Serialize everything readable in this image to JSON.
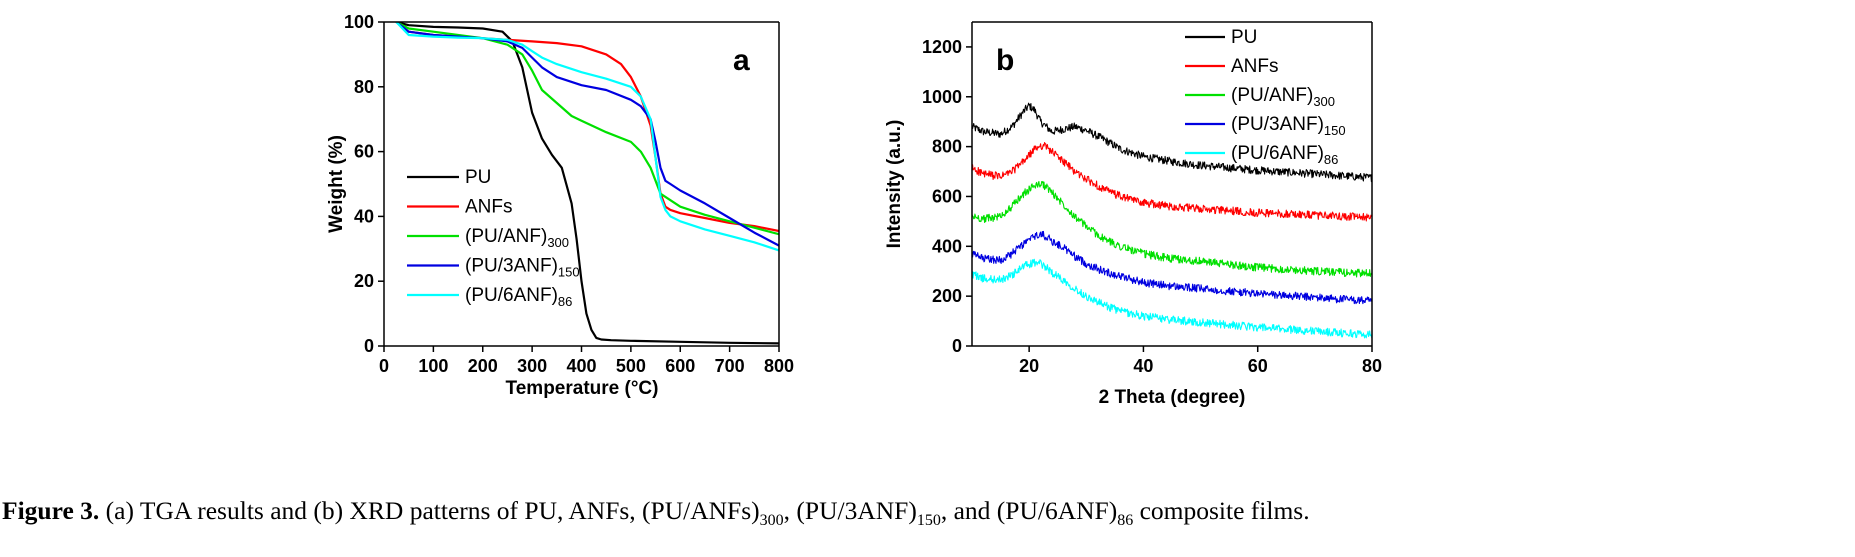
{
  "chart_data": [
    {
      "panel": "a",
      "type": "line",
      "xlabel": "Temperature (°C)",
      "ylabel": "Weight (%)",
      "xlim": [
        0,
        800
      ],
      "ylim": [
        0,
        100
      ],
      "xticks": [
        0,
        100,
        200,
        300,
        400,
        500,
        600,
        700,
        800
      ],
      "yticks": [
        0,
        20,
        40,
        60,
        80,
        100
      ],
      "grid": false,
      "legend_position": "lower-left",
      "series": [
        {
          "name": "PU",
          "name_sub": "",
          "color": "#000000",
          "x": [
            25,
            50,
            100,
            150,
            200,
            240,
            260,
            280,
            300,
            320,
            340,
            360,
            380,
            390,
            400,
            410,
            420,
            430,
            440,
            460,
            500,
            600,
            700,
            800
          ],
          "y": [
            100,
            99,
            98.5,
            98.3,
            98,
            97,
            94,
            86,
            72,
            64,
            59,
            55,
            44,
            33,
            20,
            10,
            5,
            2.5,
            2,
            1.8,
            1.6,
            1.3,
            1.0,
            0.8
          ]
        },
        {
          "name": "ANFs",
          "name_sub": "",
          "color": "#ff0000",
          "x": [
            25,
            50,
            100,
            150,
            200,
            250,
            300,
            350,
            400,
            450,
            480,
            500,
            520,
            540,
            550,
            560,
            570,
            580,
            600,
            650,
            700,
            750,
            800
          ],
          "y": [
            100,
            97,
            96,
            95.5,
            95,
            94.5,
            94,
            93.5,
            92.5,
            90,
            87,
            83,
            77,
            68,
            58,
            47,
            43,
            42,
            41,
            39.5,
            38,
            37,
            35.5
          ]
        },
        {
          "name": "(PU/ANF)",
          "name_sub": "300",
          "color": "#00e000",
          "x": [
            25,
            50,
            100,
            150,
            200,
            250,
            280,
            300,
            320,
            350,
            380,
            400,
            450,
            500,
            520,
            540,
            560,
            580,
            600,
            650,
            700,
            750,
            800
          ],
          "y": [
            100,
            98,
            97,
            96,
            95,
            93,
            90,
            85,
            79,
            75,
            71,
            69.5,
            66,
            63,
            60,
            55,
            47,
            45,
            43,
            40.5,
            38.5,
            36.5,
            34.5
          ]
        },
        {
          "name": "(PU/3ANF)",
          "name_sub": "150",
          "color": "#0000e0",
          "x": [
            25,
            50,
            100,
            150,
            200,
            250,
            280,
            300,
            320,
            350,
            400,
            450,
            500,
            520,
            540,
            550,
            560,
            570,
            580,
            600,
            650,
            700,
            750,
            800
          ],
          "y": [
            100,
            97,
            96,
            95.5,
            95,
            94,
            92,
            89,
            86,
            83,
            80.5,
            79,
            76,
            74,
            70,
            63,
            55,
            51,
            50,
            48,
            44,
            39.5,
            35,
            31
          ]
        },
        {
          "name": "(PU/6ANF)",
          "name_sub": "86",
          "color": "#00ffff",
          "x": [
            25,
            50,
            100,
            150,
            200,
            250,
            280,
            300,
            320,
            350,
            400,
            450,
            500,
            520,
            540,
            550,
            560,
            570,
            580,
            600,
            650,
            700,
            750,
            800
          ],
          "y": [
            100,
            96,
            95.5,
            95.2,
            95,
            94.5,
            93,
            91,
            89,
            87,
            84.5,
            82.5,
            80,
            77,
            70,
            58,
            46,
            42,
            40,
            38.5,
            36,
            34,
            32,
            29.5
          ]
        }
      ]
    },
    {
      "panel": "b",
      "type": "line",
      "xlabel": "2 Theta (degree)",
      "ylabel": "Intensity (a.u.)",
      "xlim": [
        10,
        80
      ],
      "ylim": [
        0,
        1300
      ],
      "xticks": [
        20,
        40,
        60,
        80
      ],
      "yticks": [
        0,
        200,
        400,
        600,
        800,
        1000,
        1200
      ],
      "grid": false,
      "legend_position": "top-right",
      "noise_amplitude": 16,
      "series": [
        {
          "name": "PU",
          "name_sub": "",
          "color": "#000000",
          "x": [
            10,
            12,
            15,
            17,
            19,
            20,
            21,
            22,
            24,
            26,
            28,
            30,
            33,
            36,
            40,
            45,
            50,
            60,
            70,
            80
          ],
          "y": [
            880,
            860,
            850,
            880,
            940,
            965,
            945,
            900,
            860,
            870,
            880,
            865,
            830,
            790,
            760,
            740,
            725,
            705,
            690,
            675
          ]
        },
        {
          "name": "ANFs",
          "name_sub": "",
          "color": "#ff0000",
          "x": [
            10,
            12,
            15,
            17,
            19,
            21,
            22,
            23,
            24,
            26,
            28,
            30,
            33,
            36,
            40,
            45,
            50,
            60,
            70,
            80
          ],
          "y": [
            715,
            690,
            680,
            700,
            740,
            790,
            805,
            800,
            780,
            740,
            700,
            670,
            630,
            600,
            575,
            560,
            550,
            535,
            525,
            515
          ]
        },
        {
          "name": "(PU/ANF)",
          "name_sub": "300",
          "color": "#00e000",
          "x": [
            10,
            12,
            15,
            17,
            19,
            21,
            22,
            23,
            24,
            26,
            28,
            30,
            33,
            36,
            40,
            45,
            50,
            60,
            70,
            80
          ],
          "y": [
            520,
            510,
            520,
            560,
            610,
            645,
            650,
            640,
            615,
            570,
            520,
            480,
            430,
            400,
            370,
            350,
            340,
            315,
            300,
            290
          ]
        },
        {
          "name": "(PU/3ANF)",
          "name_sub": "150",
          "color": "#0000e0",
          "x": [
            10,
            12,
            15,
            17,
            19,
            21,
            22,
            23,
            24,
            26,
            28,
            30,
            33,
            36,
            40,
            45,
            50,
            60,
            70,
            80
          ],
          "y": [
            370,
            350,
            345,
            370,
            410,
            440,
            448,
            440,
            420,
            395,
            360,
            330,
            300,
            280,
            255,
            240,
            230,
            210,
            195,
            180
          ]
        },
        {
          "name": "(PU/6ANF)",
          "name_sub": "86",
          "color": "#00ffff",
          "x": [
            10,
            12,
            15,
            17,
            19,
            21,
            22,
            23,
            24,
            26,
            28,
            30,
            33,
            36,
            40,
            45,
            50,
            60,
            70,
            80
          ],
          "y": [
            290,
            270,
            265,
            285,
            320,
            335,
            330,
            315,
            295,
            265,
            230,
            200,
            165,
            140,
            120,
            105,
            95,
            75,
            60,
            45
          ]
        }
      ]
    }
  ],
  "caption": {
    "label": "Figure 3.",
    "text": "(a) TGA results and (b) XRD patterns of PU, ANFs, (PU/ANFs)",
    "sub1": "300",
    "mid1": ", (PU/3ANF)",
    "sub2": "150",
    "mid2": ", and (PU/6ANF)",
    "sub3": "86",
    "end": " composite films."
  }
}
